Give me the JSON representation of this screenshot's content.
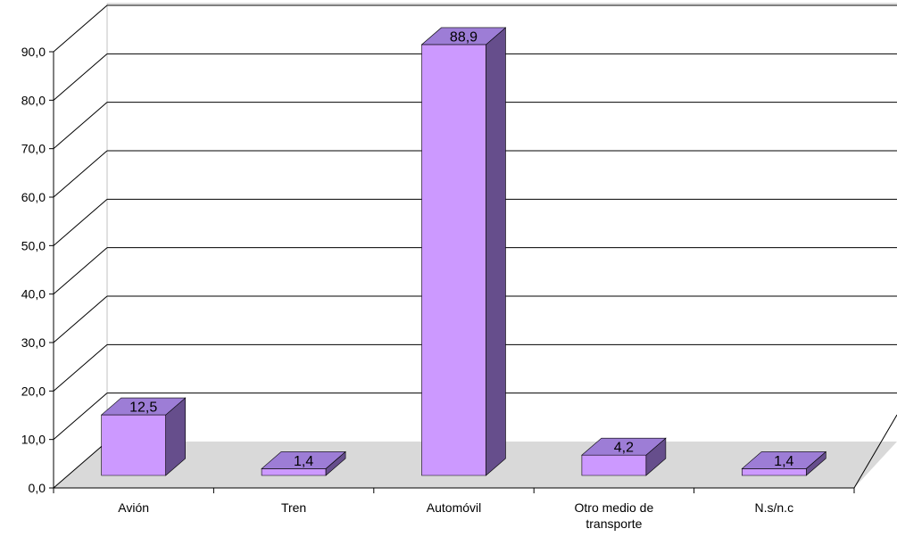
{
  "chart_data": {
    "type": "bar",
    "title": "",
    "xlabel": "",
    "ylabel": "",
    "categories": [
      "Avión",
      "Tren",
      "Automóvil",
      "Otro medio de transporte",
      "N.s/n.c"
    ],
    "category_lines": [
      [
        "Avión"
      ],
      [
        "Tren"
      ],
      [
        "Automóvil"
      ],
      [
        "Otro medio de",
        "transporte"
      ],
      [
        "N.s/n.c"
      ]
    ],
    "values": [
      12.5,
      1.4,
      88.9,
      4.2,
      1.4
    ],
    "value_labels": [
      "12,5",
      "1,4",
      "88,9",
      "4,2",
      "1,4"
    ],
    "ylim": [
      0,
      90
    ],
    "yticks": [
      0,
      10,
      20,
      30,
      40,
      50,
      60,
      70,
      80,
      90
    ],
    "ytick_labels": [
      "0,0",
      "10,0",
      "20,0",
      "30,0",
      "40,0",
      "50,0",
      "60,0",
      "70,0",
      "80,0",
      "90,0"
    ],
    "grid": true,
    "legend": "none",
    "style": "3d-columns",
    "colors": {
      "bar_front": "#cc99ff",
      "bar_top": "#9d7dd6",
      "bar_side": "#664e8c",
      "floor": "#d9d9d9",
      "grid": "#000000",
      "wall": "#c0c0c0"
    }
  }
}
